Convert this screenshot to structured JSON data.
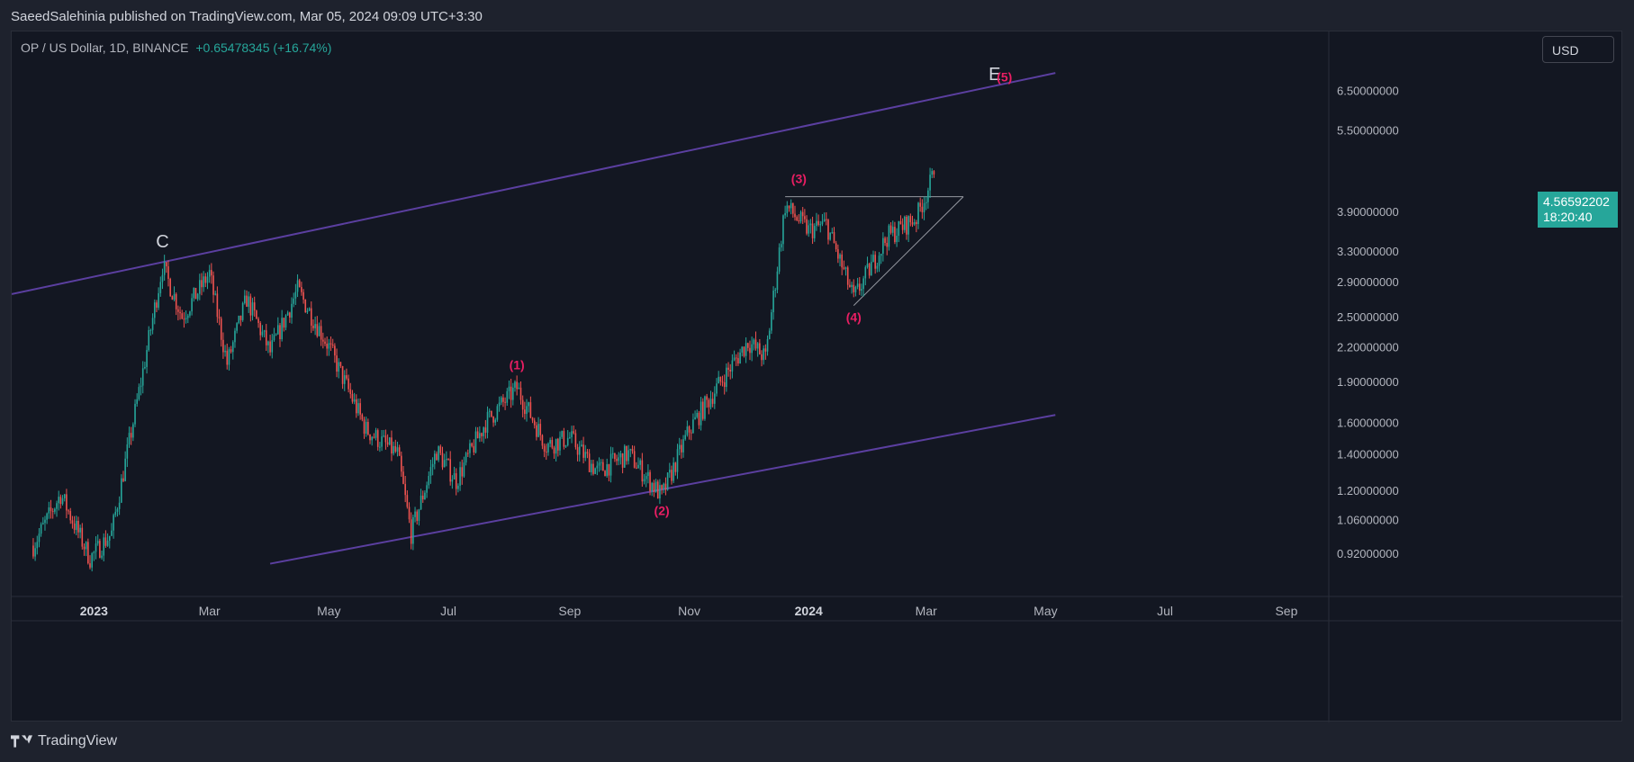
{
  "header": {
    "published": "SaeedSalehinia published on TradingView.com, Mar 05, 2024 09:09 UTC+3:30"
  },
  "legend": {
    "symbol": "OP / US Dollar, 1D, BINANCE",
    "change": "+0.65478345 (+16.74%)"
  },
  "currency_button": "USD",
  "price_tag": {
    "price": "4.56592202",
    "countdown": "18:20:40"
  },
  "footer": {
    "brand": "TradingView"
  },
  "colors": {
    "up": "#26a69a",
    "down": "#ef5350",
    "channel": "#5b3fa0",
    "wave_label": "#e91e63",
    "background": "#131722"
  },
  "chart_data": {
    "type": "candlestick",
    "title": "OP / US Dollar, 1D, BINANCE",
    "y_axis": {
      "scale": "log",
      "ticks": [
        "0.92000000",
        "1.06000000",
        "1.20000000",
        "1.40000000",
        "1.60000000",
        "1.90000000",
        "2.20000000",
        "2.50000000",
        "2.90000000",
        "3.30000000",
        "3.90000000",
        "5.50000000",
        "6.50000000"
      ]
    },
    "x_axis": {
      "ticks": [
        "2023",
        "Mar",
        "May",
        "Jul",
        "Sep",
        "Nov",
        "2024",
        "Mar",
        "May",
        "Jul",
        "Sep"
      ]
    },
    "price_path": [
      [
        "2022-12-01",
        0.95
      ],
      [
        "2022-12-15",
        1.18
      ],
      [
        "2022-12-30",
        0.9
      ],
      [
        "2023-01-10",
        1.0
      ],
      [
        "2023-01-25",
        1.9
      ],
      [
        "2023-02-05",
        3.1
      ],
      [
        "2023-02-15",
        2.5
      ],
      [
        "2023-03-01",
        3.0
      ],
      [
        "2023-03-10",
        2.05
      ],
      [
        "2023-03-20",
        2.7
      ],
      [
        "2023-04-01",
        2.15
      ],
      [
        "2023-04-15",
        2.8
      ],
      [
        "2023-05-01",
        2.2
      ],
      [
        "2023-05-20",
        1.55
      ],
      [
        "2023-06-05",
        1.4
      ],
      [
        "2023-06-12",
        1.0
      ],
      [
        "2023-06-25",
        1.42
      ],
      [
        "2023-07-05",
        1.25
      ],
      [
        "2023-07-20",
        1.6
      ],
      [
        "2023-08-05",
        1.85
      ],
      [
        "2023-08-20",
        1.45
      ],
      [
        "2023-09-01",
        1.5
      ],
      [
        "2023-09-15",
        1.3
      ],
      [
        "2023-10-01",
        1.4
      ],
      [
        "2023-10-18",
        1.17
      ],
      [
        "2023-11-01",
        1.55
      ],
      [
        "2023-11-15",
        1.85
      ],
      [
        "2023-12-01",
        2.25
      ],
      [
        "2023-12-10",
        2.1
      ],
      [
        "2023-12-20",
        4.0
      ],
      [
        "2024-01-01",
        3.6
      ],
      [
        "2024-01-10",
        3.7
      ],
      [
        "2024-01-24",
        2.7
      ],
      [
        "2024-02-10",
        3.5
      ],
      [
        "2024-02-25",
        3.8
      ],
      [
        "2024-03-05",
        4.56
      ]
    ],
    "annotations": [
      {
        "text": "C",
        "date": "2023-02-05",
        "price": 3.35
      },
      {
        "text": "E",
        "date": "2024-04-05",
        "price": 6.8
      },
      {
        "text": "(1)",
        "date": "2023-08-05",
        "price": 2.0
      },
      {
        "text": "(2)",
        "date": "2023-10-18",
        "price": 1.08
      },
      {
        "text": "(3)",
        "date": "2023-12-27",
        "price": 4.4
      },
      {
        "text": "(4)",
        "date": "2024-01-24",
        "price": 2.45
      },
      {
        "text": "(5)",
        "date": "2024-04-10",
        "price": 6.75
      }
    ],
    "lines": [
      {
        "name": "channel-upper",
        "from": [
          "2022-11-20",
          2.75
        ],
        "to": [
          "2024-05-06",
          7.0
        ]
      },
      {
        "name": "channel-lower",
        "from": [
          "2023-04-01",
          0.88
        ],
        "to": [
          "2024-05-06",
          1.65
        ]
      },
      {
        "name": "triangle-top",
        "from": [
          "2023-12-20",
          4.15
        ],
        "to": [
          "2024-03-20",
          4.15
        ]
      },
      {
        "name": "triangle-bottom",
        "from": [
          "2024-01-24",
          2.62
        ],
        "to": [
          "2024-03-20",
          4.15
        ]
      }
    ]
  }
}
